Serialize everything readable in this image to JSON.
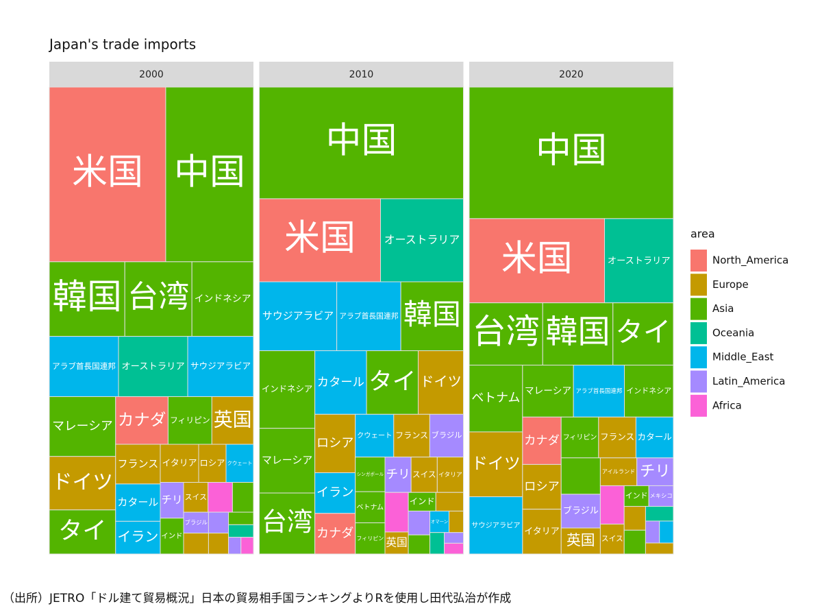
{
  "chart_data": {
    "type": "treemap",
    "title": "Japan's trade imports",
    "legend_title": "area",
    "legend_position": "right",
    "caption": "（出所）JETRO「ドル建て貿易概況」日本の貿易相手国ランキングよりRを使用し田代弘治が作成",
    "areas": [
      {
        "name": "North_America",
        "color": "#F8766D"
      },
      {
        "name": "Europe",
        "color": "#C49A00"
      },
      {
        "name": "Asia",
        "color": "#53B400"
      },
      {
        "name": "Oceania",
        "color": "#00C094"
      },
      {
        "name": "Middle_East",
        "color": "#00B6EB"
      },
      {
        "name": "Latin_America",
        "color": "#A58AFF"
      },
      {
        "name": "Africa",
        "color": "#FB61D7"
      }
    ],
    "facets": [
      {
        "label": "2000",
        "tiles": [
          {
            "label": "米国",
            "area": "North_America",
            "value": 19.5
          },
          {
            "label": "中国",
            "area": "Asia",
            "value": 14.7
          },
          {
            "label": "韓国",
            "area": "Asia",
            "value": 5.4
          },
          {
            "label": "台湾",
            "area": "Asia",
            "value": 4.8
          },
          {
            "label": "インドネシア",
            "area": "Asia",
            "value": 4.4
          },
          {
            "label": "アラブ首長国連邦",
            "area": "Middle_East",
            "value": 4.0
          },
          {
            "label": "オーストラリア",
            "area": "Oceania",
            "value": 4.0
          },
          {
            "label": "サウジアラビア",
            "area": "Middle_East",
            "value": 3.8
          },
          {
            "label": "マレーシア",
            "area": "Asia",
            "value": 3.8
          },
          {
            "label": "ドイツ",
            "area": "Europe",
            "value": 3.4
          },
          {
            "label": "タイ",
            "area": "Asia",
            "value": 2.8
          },
          {
            "label": "カナダ",
            "area": "North_America",
            "value": 2.4
          },
          {
            "label": "フィリピン",
            "area": "Asia",
            "value": 2.0
          },
          {
            "label": "英国",
            "area": "Europe",
            "value": 1.9
          },
          {
            "label": "フランス",
            "area": "Europe",
            "value": 1.7
          },
          {
            "label": "カタール",
            "area": "Middle_East",
            "value": 1.6
          },
          {
            "label": "イラン",
            "area": "Middle_East",
            "value": 1.4
          },
          {
            "label": "イタリア",
            "area": "Europe",
            "value": 1.4
          },
          {
            "label": "ロシア",
            "area": "Europe",
            "value": 1.0
          },
          {
            "label": "クウェート",
            "area": "Middle_East",
            "value": 1.0
          },
          {
            "label": "チリ",
            "area": "Latin_America",
            "value": 0.8
          },
          {
            "label": "インド",
            "area": "Asia",
            "value": 0.8
          },
          {
            "label": "スイス",
            "area": "Europe",
            "value": 0.7
          },
          {
            "label": null,
            "area": "Africa",
            "value": 0.7
          },
          {
            "label": null,
            "area": "Asia",
            "value": 0.6
          },
          {
            "label": "ブラジル",
            "area": "Latin_America",
            "value": 0.5
          },
          {
            "label": null,
            "area": "Europe",
            "value": 0.5
          },
          {
            "label": null,
            "area": "Latin_America",
            "value": 0.4
          },
          {
            "label": null,
            "area": "Europe",
            "value": 0.4
          },
          {
            "label": null,
            "area": "Asia",
            "value": 0.3
          },
          {
            "label": null,
            "area": "Oceania",
            "value": 0.3
          },
          {
            "label": null,
            "area": "Latin_America",
            "value": 0.2
          },
          {
            "label": null,
            "area": "Africa",
            "value": 0.2
          }
        ]
      },
      {
        "label": "2010",
        "tiles": [
          {
            "label": "中国",
            "area": "Asia",
            "value": 22.2
          },
          {
            "label": "米国",
            "area": "North_America",
            "value": 9.8
          },
          {
            "label": "オーストラリア",
            "area": "Oceania",
            "value": 6.7
          },
          {
            "label": "サウジアラビア",
            "area": "Middle_East",
            "value": 5.2
          },
          {
            "label": "アラブ首長国連邦",
            "area": "Middle_East",
            "value": 4.3
          },
          {
            "label": "韓国",
            "area": "Asia",
            "value": 4.2
          },
          {
            "label": "インドネシア",
            "area": "Asia",
            "value": 4.2
          },
          {
            "label": "マレーシア",
            "area": "Asia",
            "value": 3.5
          },
          {
            "label": "台湾",
            "area": "Asia",
            "value": 3.3
          },
          {
            "label": "カタール",
            "area": "Middle_East",
            "value": 3.2
          },
          {
            "label": "タイ",
            "area": "Asia",
            "value": 3.2
          },
          {
            "label": "ドイツ",
            "area": "Europe",
            "value": 2.8
          },
          {
            "label": "ロシア",
            "area": "Europe",
            "value": 2.3
          },
          {
            "label": "イラン",
            "area": "Middle_East",
            "value": 1.6
          },
          {
            "label": "カナダ",
            "area": "North_America",
            "value": 1.6
          },
          {
            "label": "クウェート",
            "area": "Middle_East",
            "value": 1.6
          },
          {
            "label": "フランス",
            "area": "Europe",
            "value": 1.5
          },
          {
            "label": "ブラジル",
            "area": "Latin_America",
            "value": 1.4
          },
          {
            "label": "シンガポール",
            "area": "Asia",
            "value": 1.0
          },
          {
            "label": "ベトナム",
            "area": "Asia",
            "value": 0.9
          },
          {
            "label": "フィリピン",
            "area": "Asia",
            "value": 0.9
          },
          {
            "label": "チリ",
            "area": "Latin_America",
            "value": 0.9
          },
          {
            "label": "スイス",
            "area": "Europe",
            "value": 0.9
          },
          {
            "label": "イタリア",
            "area": "Europe",
            "value": 0.9
          },
          {
            "label": null,
            "area": "Africa",
            "value": 0.9
          },
          {
            "label": "英国",
            "area": "Europe",
            "value": 0.5
          },
          {
            "label": "インド",
            "area": "Asia",
            "value": 0.5
          },
          {
            "label": null,
            "area": "Europe",
            "value": 0.5
          },
          {
            "label": null,
            "area": "Latin_America",
            "value": 0.5
          },
          {
            "label": null,
            "area": "Asia",
            "value": 0.4
          },
          {
            "label": "オマーン",
            "area": "Middle_East",
            "value": 0.4
          },
          {
            "label": null,
            "area": "Europe",
            "value": 0.3
          },
          {
            "label": null,
            "area": "Oceania",
            "value": 0.3
          },
          {
            "label": null,
            "area": "Latin_America",
            "value": 0.2
          },
          {
            "label": null,
            "area": "Africa",
            "value": 0.2
          }
        ]
      },
      {
        "label": "2020",
        "tiles": [
          {
            "label": "中国",
            "area": "Asia",
            "value": 26.4
          },
          {
            "label": "米国",
            "area": "North_America",
            "value": 11.2
          },
          {
            "label": "オーストラリア",
            "area": "Oceania",
            "value": 5.7
          },
          {
            "label": "台湾",
            "area": "Asia",
            "value": 4.5
          },
          {
            "label": "韓国",
            "area": "Asia",
            "value": 4.3
          },
          {
            "label": "タイ",
            "area": "Asia",
            "value": 3.7
          },
          {
            "label": "ベトナム",
            "area": "Asia",
            "value": 3.5
          },
          {
            "label": "ドイツ",
            "area": "Europe",
            "value": 3.4
          },
          {
            "label": "サウジアラビア",
            "area": "Middle_East",
            "value": 3.0
          },
          {
            "label": "マレーシア",
            "area": "Asia",
            "value": 2.6
          },
          {
            "label": "アラブ首長国連邦",
            "area": "Middle_East",
            "value": 2.6
          },
          {
            "label": "インドネシア",
            "area": "Asia",
            "value": 2.5
          },
          {
            "label": "カナダ",
            "area": "North_America",
            "value": 1.8
          },
          {
            "label": "ロシア",
            "area": "Europe",
            "value": 1.7
          },
          {
            "label": "イタリア",
            "area": "Europe",
            "value": 1.7
          },
          {
            "label": "フィリピン",
            "area": "Asia",
            "value": 1.5
          },
          {
            "label": "フランス",
            "area": "Europe",
            "value": 1.5
          },
          {
            "label": "カタール",
            "area": "Middle_East",
            "value": 1.5
          },
          {
            "label": null,
            "area": "Asia",
            "value": 1.4
          },
          {
            "label": "ブラジル",
            "area": "Latin_America",
            "value": 1.3
          },
          {
            "label": "英国",
            "area": "Europe",
            "value": 1.0
          },
          {
            "label": "アイルランド",
            "area": "Europe",
            "value": 1.0
          },
          {
            "label": "チリ",
            "area": "Latin_America",
            "value": 1.0
          },
          {
            "label": null,
            "area": "Africa",
            "value": 0.9
          },
          {
            "label": "スイス",
            "area": "Europe",
            "value": 0.7
          },
          {
            "label": "インド",
            "area": "Asia",
            "value": 0.5
          },
          {
            "label": "メキシコ",
            "area": "Latin_America",
            "value": 0.5
          },
          {
            "label": null,
            "area": "Europe",
            "value": 0.5
          },
          {
            "label": null,
            "area": "Asia",
            "value": 0.5
          },
          {
            "label": null,
            "area": "Oceania",
            "value": 0.4
          },
          {
            "label": null,
            "area": "Latin_America",
            "value": 0.3
          },
          {
            "label": null,
            "area": "Middle_East",
            "value": 0.3
          },
          {
            "label": null,
            "area": "Europe",
            "value": 0.3
          }
        ]
      }
    ]
  }
}
